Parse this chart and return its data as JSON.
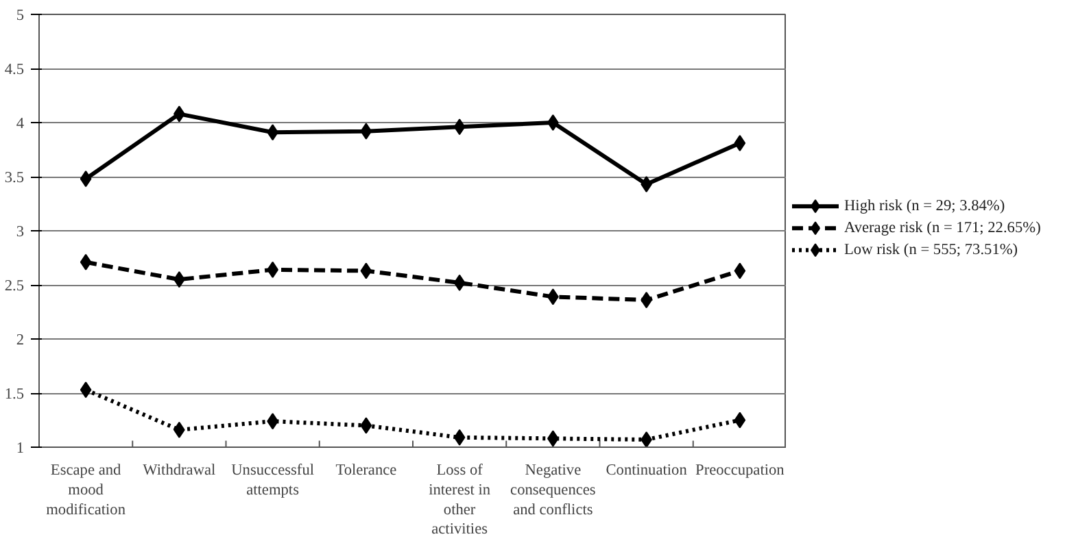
{
  "chart_data": {
    "type": "line",
    "categories": [
      "Escape and mood modification",
      "Withdrawal",
      "Unsuccessful attempts",
      "Tolerance",
      "Loss of interest in other activities",
      "Negative consequences and conflicts",
      "Continuation",
      "Preoccupation"
    ],
    "series": [
      {
        "name": "High risk (n = 29; 3.84%)",
        "color": "#000000",
        "line_style": "solid",
        "values": [
          3.48,
          4.08,
          3.91,
          3.92,
          3.96,
          4.0,
          3.43,
          3.81
        ]
      },
      {
        "name": "Average risk (n = 171; 22.65%)",
        "color": "#000000",
        "line_style": "dashed",
        "values": [
          2.71,
          2.55,
          2.64,
          2.63,
          2.52,
          2.39,
          2.36,
          2.63
        ]
      },
      {
        "name": "Low risk (n = 555; 73.51%)",
        "color": "#000000",
        "line_style": "dotted",
        "values": [
          1.53,
          1.16,
          1.24,
          1.2,
          1.09,
          1.08,
          1.07,
          1.25
        ]
      }
    ],
    "ylim": [
      1,
      5
    ],
    "yticks": [
      1,
      1.5,
      2,
      2.5,
      3,
      3.5,
      4,
      4.5,
      5
    ],
    "grid": "y",
    "marker": "diamond",
    "legend": "right"
  }
}
